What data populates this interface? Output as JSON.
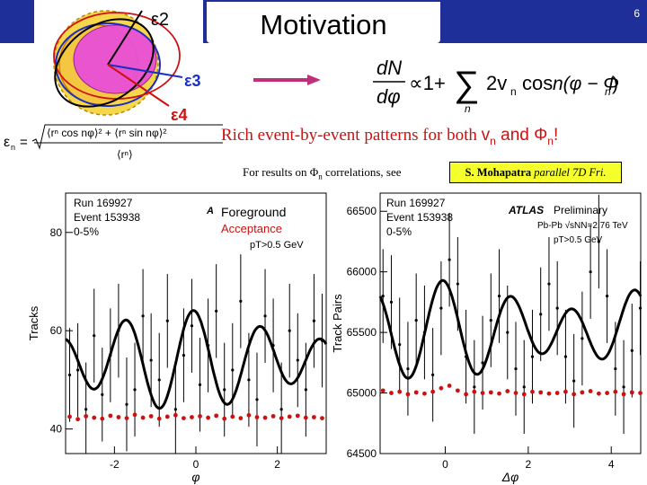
{
  "slide": {
    "title": "Motivation",
    "page_number": "6",
    "rich_text_prefix": "Rich event-by-event patterns for both ",
    "rich_vn": "v",
    "rich_sub_n1": "n",
    "rich_and": " and Φ",
    "rich_sub_n2": "n",
    "rich_bang": "!",
    "results_text_prefix": "For results on Φ",
    "results_sub": "n",
    "results_text_suffix": " correlations, see",
    "badge_name": "S. Mohapatra",
    "badge_rest": " parallel 7D Fri."
  },
  "diagram": {
    "labels": [
      "ε2",
      "ε3",
      "ε4"
    ],
    "colors": {
      "e2": "#000000",
      "e3": "#1b2fc0",
      "e4": "#d01010"
    }
  },
  "formula": {
    "lhs_num": "dN",
    "lhs_den": "dφ",
    "prop": "∝1+",
    "sum": "∑",
    "sum_index": "n",
    "term": "2v",
    "term_sub": "n",
    "cos": "cos",
    "arg": "n(φ − Φ",
    "arg_sub": "n",
    "arg_close": ")"
  },
  "eps_formula": {
    "lhs": "ε",
    "lhs_sub": "n",
    "eq": "=",
    "numerator": "⟨rⁿ cos nφ⟩² + ⟨rⁿ sin nφ⟩²",
    "denominator": "⟨rⁿ⟩"
  },
  "chart_data": [
    {
      "type": "line",
      "ylabel": "Tracks",
      "xlabel": "φ",
      "ylim": [
        35,
        88
      ],
      "xlim": [
        -3.2,
        3.2
      ],
      "yticks": [
        40,
        60,
        80
      ],
      "xticks": [
        -2,
        0,
        2
      ],
      "annotations": [
        "Run 169927",
        "Event 153938",
        "0-5%",
        "pT>0.5 GeV"
      ],
      "legend": [
        {
          "label": "Foreground",
          "color": "#000000"
        },
        {
          "label": "Acceptance",
          "color": "#cc1111"
        }
      ],
      "series": [
        {
          "name": "Foreground",
          "color": "#000000",
          "x": [
            -3.1,
            -2.9,
            -2.7,
            -2.5,
            -2.3,
            -2.1,
            -1.9,
            -1.7,
            -1.5,
            -1.3,
            -1.1,
            -0.9,
            -0.7,
            -0.5,
            -0.3,
            -0.1,
            0.1,
            0.3,
            0.5,
            0.7,
            0.9,
            1.1,
            1.3,
            1.5,
            1.7,
            1.9,
            2.1,
            2.3,
            2.5,
            2.7,
            2.9,
            3.1
          ],
          "y": [
            51,
            52,
            44,
            59,
            47,
            55,
            60,
            45,
            48,
            63,
            54,
            50,
            62,
            44,
            55,
            61,
            49,
            57,
            64,
            48,
            52,
            66,
            50,
            46,
            63,
            57,
            44,
            60,
            54,
            48,
            62,
            58
          ]
        },
        {
          "name": "Acceptance",
          "color": "#cc1111",
          "x": [
            -3.1,
            -2.9,
            -2.7,
            -2.5,
            -2.3,
            -2.1,
            -1.9,
            -1.7,
            -1.5,
            -1.3,
            -1.1,
            -0.9,
            -0.7,
            -0.5,
            -0.3,
            -0.1,
            0.1,
            0.3,
            0.5,
            0.7,
            0.9,
            1.1,
            1.3,
            1.5,
            1.7,
            1.9,
            2.1,
            2.3,
            2.5,
            2.7,
            2.9,
            3.1
          ],
          "y": [
            42.5,
            42,
            42.6,
            42.3,
            42.1,
            42.7,
            42.4,
            42.2,
            42.9,
            42.3,
            42.6,
            42.1,
            42.5,
            42.8,
            42.2,
            42.4,
            42.6,
            42.3,
            42.7,
            42.1,
            42.5,
            42.2,
            42.8,
            42.4,
            42.3,
            42.6,
            42.2,
            42.5,
            42.7,
            42.3,
            42.4,
            42.2
          ]
        }
      ]
    },
    {
      "type": "line",
      "ylabel": "Track Pairs",
      "xlabel": "Δφ",
      "ylim": [
        64500,
        66650
      ],
      "xlim": [
        -1.57,
        4.71
      ],
      "yticks": [
        64500,
        65000,
        65500,
        66000,
        66500
      ],
      "xticks": [
        0,
        2,
        4
      ],
      "annotations": [
        "Run 169927",
        "Event 153938",
        "0-5%",
        "ATLAS",
        "Preliminary",
        "Pb-Pb √sNN=2.76 TeV",
        "pT>0.5 GeV"
      ],
      "series": [
        {
          "name": "Foreground",
          "color": "#000000",
          "x": [
            -1.5,
            -1.3,
            -1.1,
            -0.9,
            -0.7,
            -0.5,
            -0.3,
            -0.1,
            0.1,
            0.3,
            0.5,
            0.7,
            0.9,
            1.1,
            1.3,
            1.5,
            1.7,
            1.9,
            2.1,
            2.3,
            2.5,
            2.7,
            2.9,
            3.1,
            3.3,
            3.5,
            3.7,
            3.9,
            4.1,
            4.3,
            4.5,
            4.7
          ],
          "y": [
            65800,
            65750,
            65400,
            65200,
            65600,
            65500,
            65150,
            65700,
            66100,
            65900,
            65300,
            65050,
            65250,
            65600,
            65800,
            65500,
            65200,
            65050,
            65300,
            65650,
            65900,
            65700,
            65300,
            65100,
            65450,
            66000,
            66250,
            65800,
            65200,
            65050,
            65350,
            65700
          ]
        },
        {
          "name": "Acceptance",
          "color": "#cc1111",
          "x": [
            -1.5,
            -1.3,
            -1.1,
            -0.9,
            -0.7,
            -0.5,
            -0.3,
            -0.1,
            0.1,
            0.3,
            0.5,
            0.7,
            0.9,
            1.1,
            1.3,
            1.5,
            1.7,
            1.9,
            2.1,
            2.3,
            2.5,
            2.7,
            2.9,
            3.1,
            3.3,
            3.5,
            3.7,
            3.9,
            4.1,
            4.3,
            4.5,
            4.7
          ],
          "y": [
            65020,
            65000,
            65010,
            64990,
            65005,
            64995,
            65010,
            65040,
            65060,
            65020,
            64990,
            65010,
            65000,
            65005,
            64995,
            65015,
            65000,
            64990,
            65010,
            65005,
            64995,
            65000,
            65010,
            64990,
            65005,
            65015,
            64995,
            65000,
            65010,
            64990,
            65005,
            65000
          ]
        }
      ]
    }
  ]
}
